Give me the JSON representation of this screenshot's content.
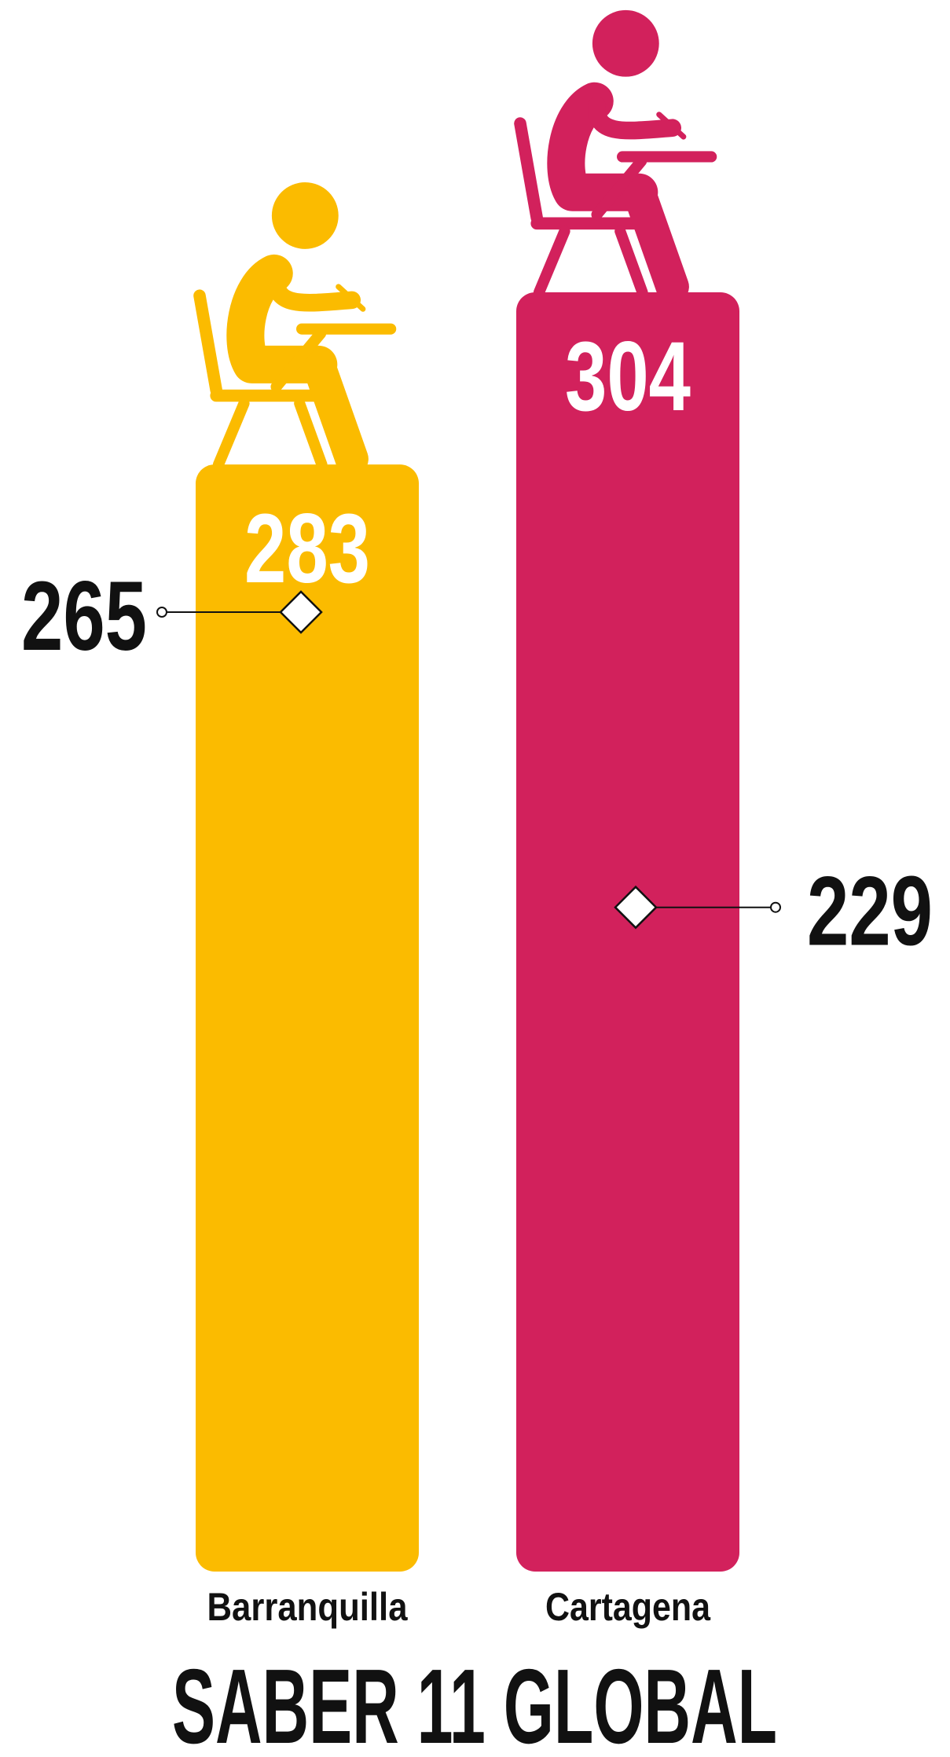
{
  "chart_data": {
    "type": "bar",
    "title": "SABER 11 GLOBAL",
    "categories": [
      "Barranquilla",
      "Cartagena"
    ],
    "values": [
      283,
      304
    ],
    "colors": [
      "#fbbb00",
      "#d2215c"
    ],
    "marker_values": [
      265,
      229
    ],
    "ylim": [
      148,
      304
    ]
  }
}
